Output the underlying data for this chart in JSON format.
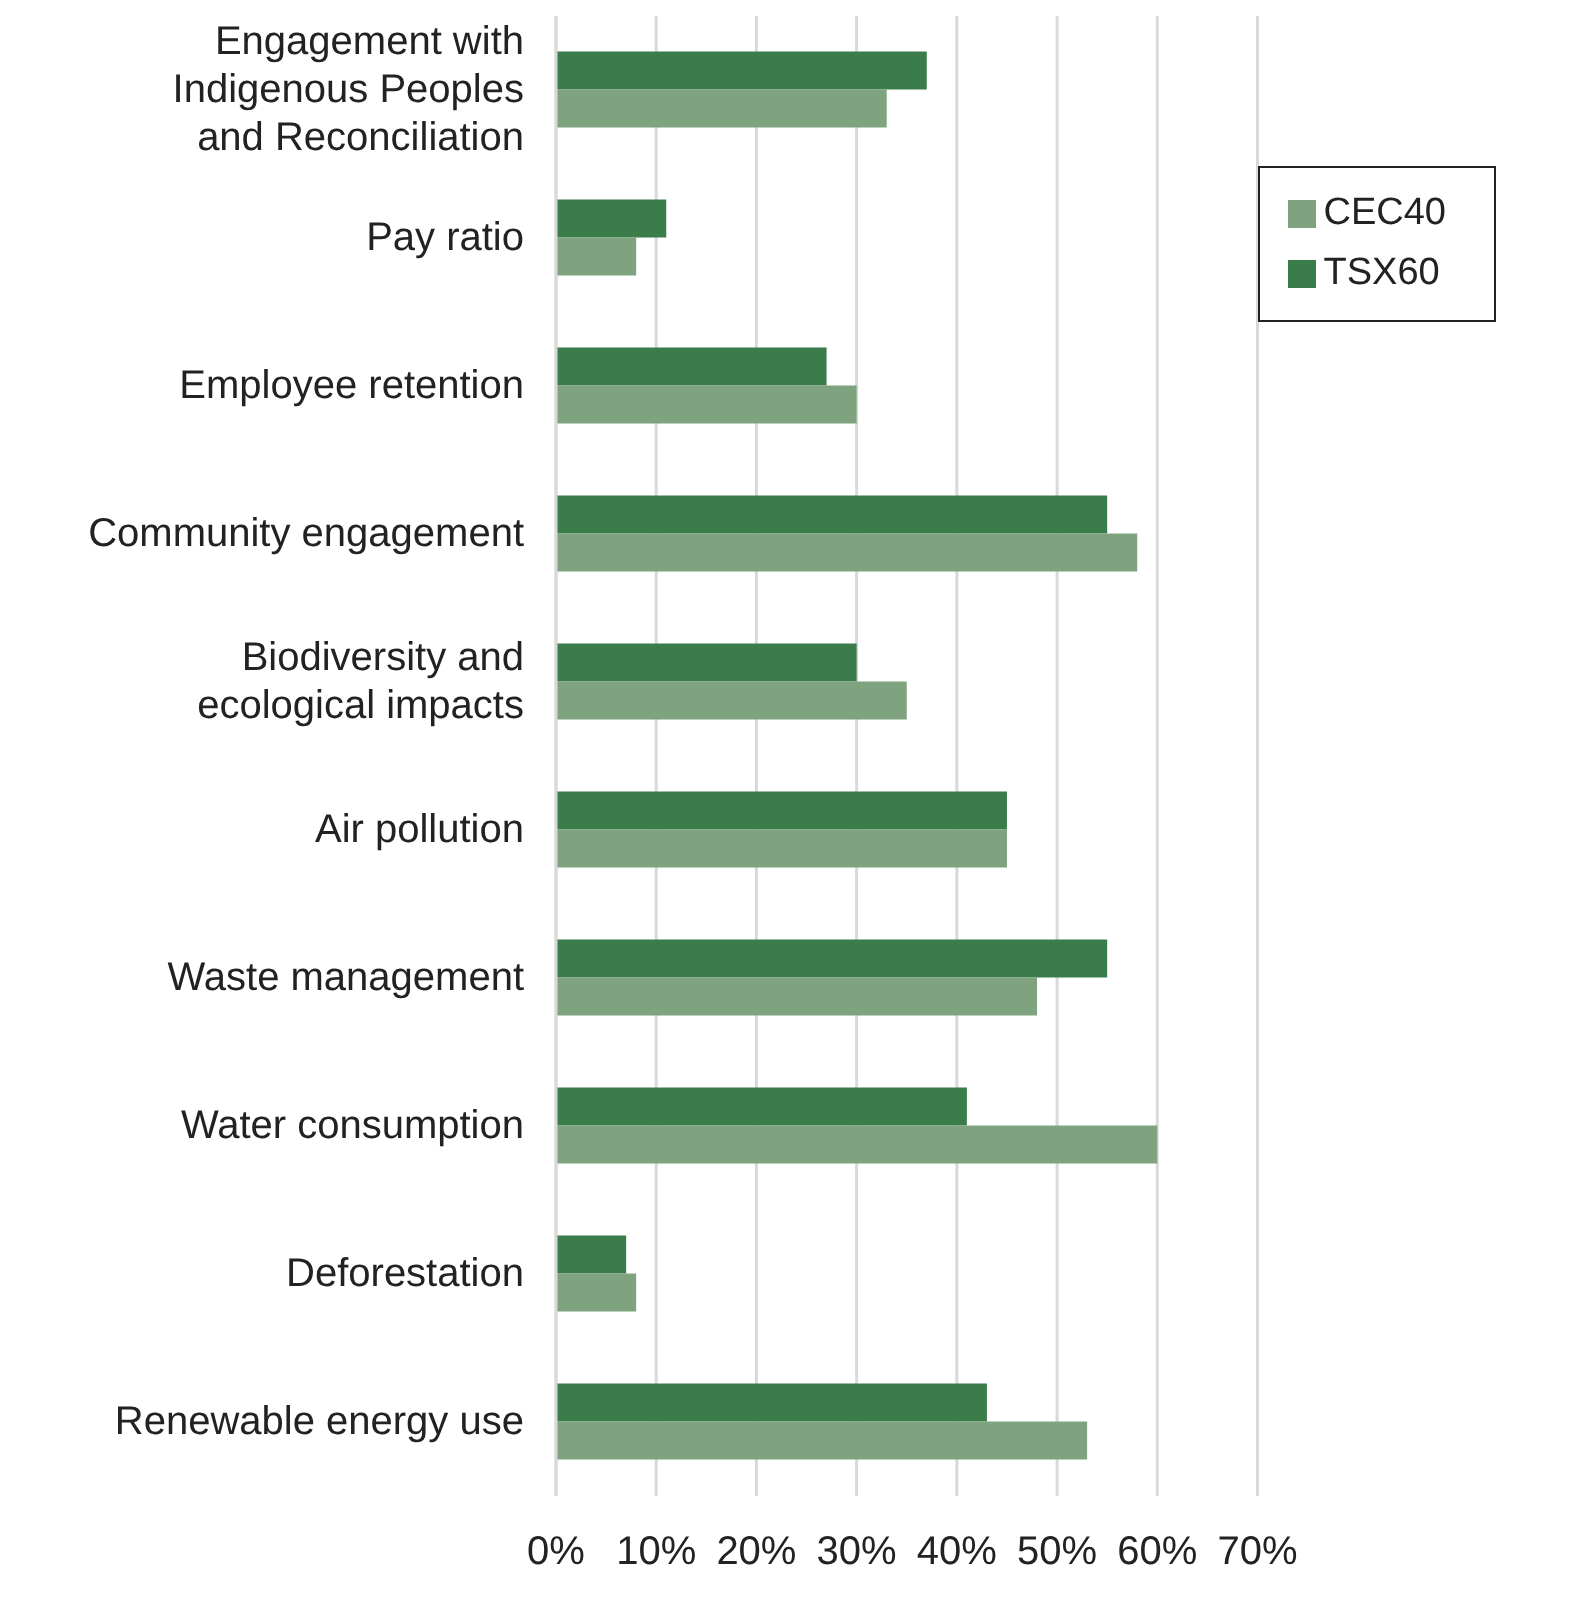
{
  "chart_data": {
    "type": "bar",
    "orientation": "horizontal",
    "categories": [
      "Engagement with Indigenous Peoples and Reconciliation",
      "Pay ratio",
      "Employee retention",
      "Community engagement",
      "Biodiversity and ecological impacts",
      "Air pollution",
      "Waste management",
      "Water consumption",
      "Deforestation",
      "Renewable energy use"
    ],
    "series": [
      {
        "name": "TSX60",
        "color": "#3a7d4a",
        "values": [
          37,
          11,
          27,
          55,
          30,
          45,
          55,
          41,
          7,
          43
        ]
      },
      {
        "name": "CEC40",
        "color": "#7fa37f",
        "values": [
          33,
          8,
          30,
          58,
          35,
          45,
          48,
          60,
          8,
          53
        ]
      }
    ],
    "xlim": [
      0,
      70
    ],
    "xticks": [
      {
        "value": 0,
        "label": "0%"
      },
      {
        "value": 10,
        "label": "10%"
      },
      {
        "value": 20,
        "label": "20%"
      },
      {
        "value": 30,
        "label": "30%"
      },
      {
        "value": 40,
        "label": "40%"
      },
      {
        "value": 50,
        "label": "50%"
      },
      {
        "value": 60,
        "label": "60%"
      },
      {
        "value": 70,
        "label": "70%"
      }
    ],
    "grid": "x",
    "legend": "top right"
  }
}
